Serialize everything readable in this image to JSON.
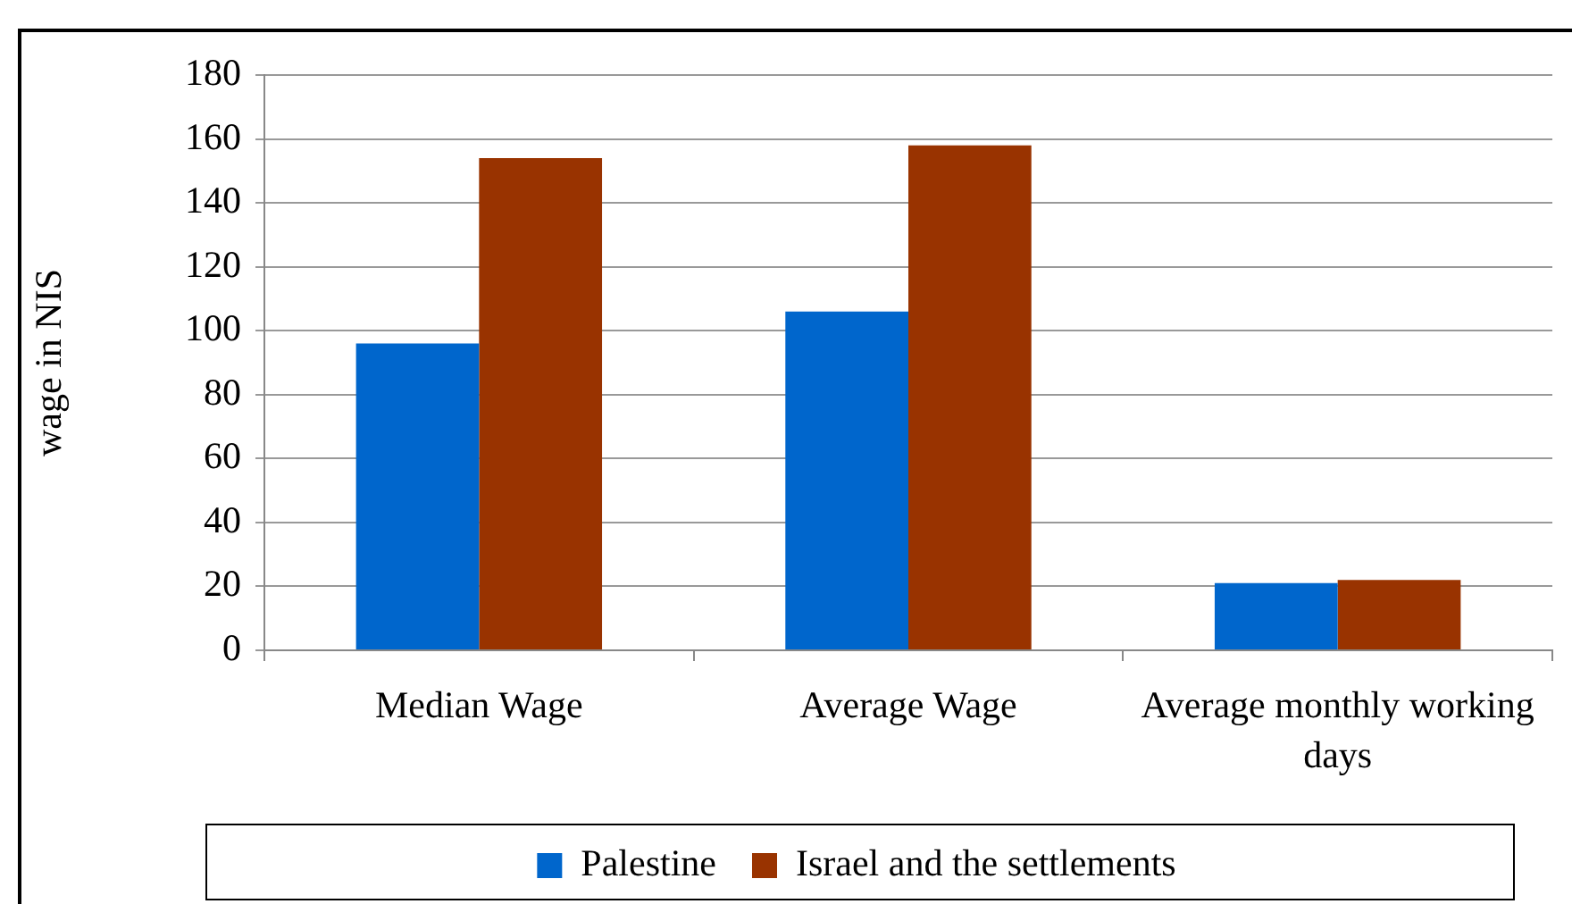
{
  "chart_data": {
    "type": "bar",
    "ylabel": "wage in NIS",
    "categories": [
      "Median Wage",
      "Average Wage",
      "Average monthly working days"
    ],
    "series": [
      {
        "name": "Palestine",
        "color": "#0066cc",
        "values": [
          96,
          106,
          21
        ]
      },
      {
        "name": "Israel and the settlements",
        "color": "#993300",
        "values": [
          154,
          158,
          22
        ]
      }
    ],
    "ylim": [
      0,
      180
    ],
    "yticks": [
      0,
      20,
      40,
      60,
      80,
      100,
      120,
      140,
      160,
      180
    ],
    "grid": "y",
    "legend": "bottom"
  }
}
